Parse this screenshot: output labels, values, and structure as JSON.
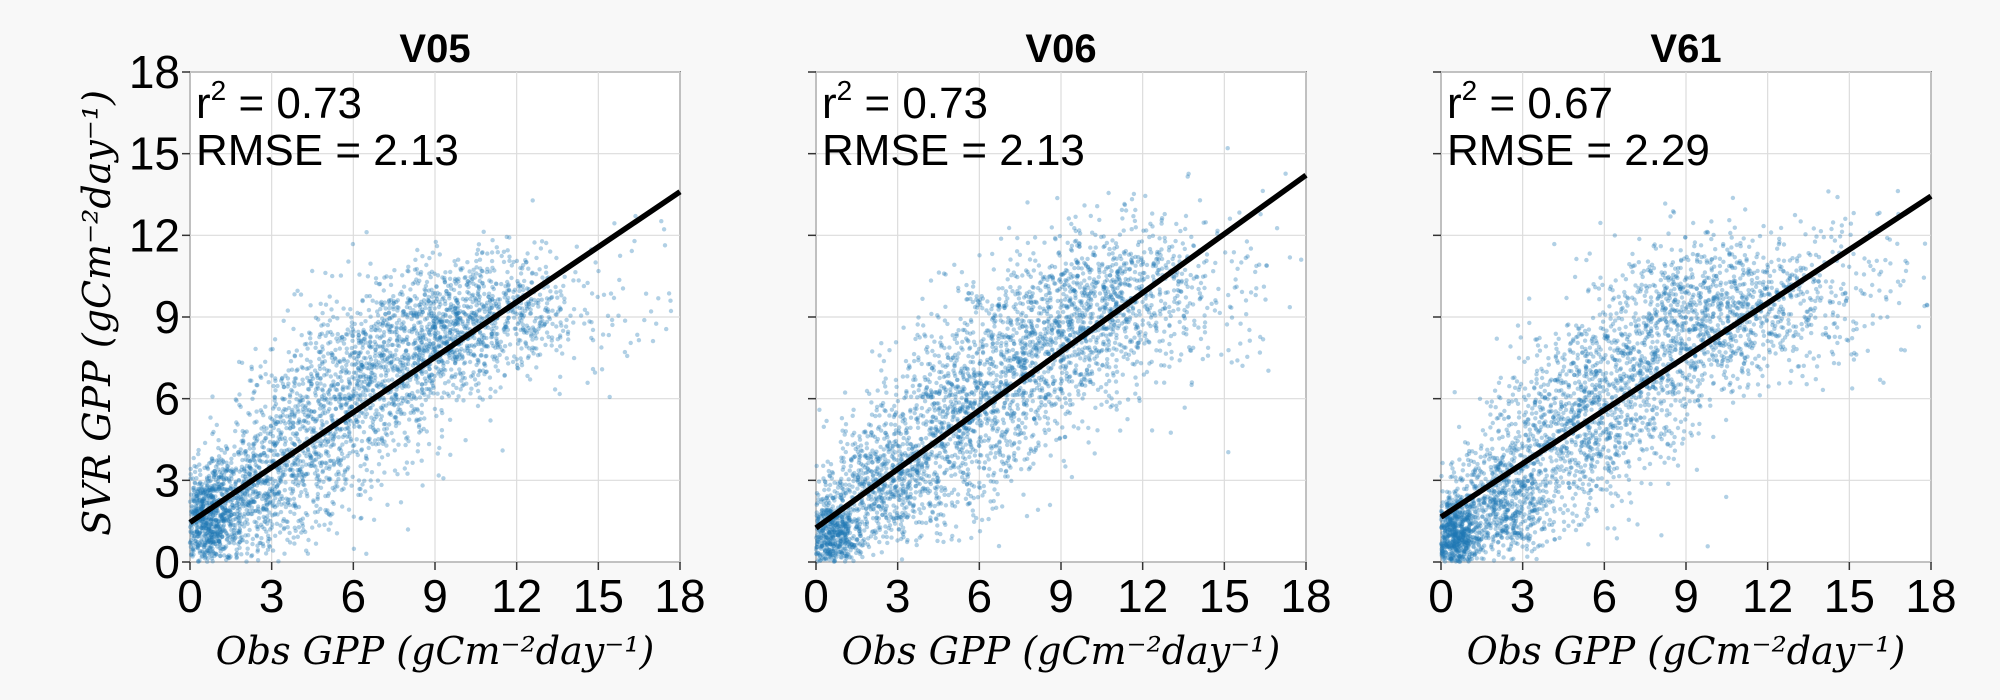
{
  "figure": {
    "ylabel": "SVR GPP (gCm⁻²day⁻¹)",
    "xlabel": "Obs GPP (gCm⁻²day⁻¹)"
  },
  "style": {
    "point_color": "#1f77b4",
    "line_color": "#000000"
  },
  "chart_data": [
    {
      "type": "scatter",
      "title": "V05",
      "xlabel": "Obs GPP (gCm⁻²day⁻¹)",
      "ylabel": "SVR GPP (gCm⁻²day⁻¹)",
      "xlim": [
        0,
        18
      ],
      "ylim": [
        0,
        18
      ],
      "xticks": [
        "0",
        "3",
        "6",
        "9",
        "12",
        "15",
        "18"
      ],
      "yticks": [
        "0",
        "3",
        "6",
        "9",
        "12",
        "15",
        "18"
      ],
      "grid": true,
      "annotations": {
        "r2_label": "r",
        "r2_sup": "2",
        "r2_value": " = 0.73",
        "rmse": "RMSE = 2.13"
      },
      "fit_line": {
        "intercept": 1.45,
        "slope": 0.675
      },
      "clusters": [
        {
          "x": 0.6,
          "y": 1.5,
          "sx": 0.55,
          "sy": 0.9,
          "n": 700
        },
        {
          "x": 2.2,
          "y": 2.5,
          "sx": 1.0,
          "sy": 1.2,
          "n": 650
        },
        {
          "x": 4.5,
          "y": 4.6,
          "sx": 1.4,
          "sy": 1.6,
          "n": 700
        },
        {
          "x": 7.0,
          "y": 7.0,
          "sx": 1.5,
          "sy": 1.5,
          "n": 750
        },
        {
          "x": 9.5,
          "y": 8.6,
          "sx": 1.5,
          "sy": 1.2,
          "n": 750
        },
        {
          "x": 12.0,
          "y": 9.2,
          "sx": 1.6,
          "sy": 1.0,
          "n": 350
        },
        {
          "x": 15.0,
          "y": 9.0,
          "sx": 1.6,
          "sy": 1.6,
          "n": 60
        }
      ]
    },
    {
      "type": "scatter",
      "title": "V06",
      "xlabel": "Obs GPP (gCm⁻²day⁻¹)",
      "ylabel": "",
      "xlim": [
        0,
        18
      ],
      "ylim": [
        0,
        18
      ],
      "xticks": [
        "0",
        "3",
        "6",
        "9",
        "12",
        "15",
        "18"
      ],
      "yticks": [],
      "grid": true,
      "annotations": {
        "r2_label": "r",
        "r2_sup": "2",
        "r2_value": " = 0.73",
        "rmse": "RMSE = 2.13"
      },
      "fit_line": {
        "intercept": 1.25,
        "slope": 0.72
      },
      "clusters": [
        {
          "x": 0.6,
          "y": 1.0,
          "sx": 0.55,
          "sy": 0.8,
          "n": 650
        },
        {
          "x": 2.5,
          "y": 2.8,
          "sx": 1.1,
          "sy": 1.2,
          "n": 650
        },
        {
          "x": 5.0,
          "y": 5.2,
          "sx": 1.4,
          "sy": 1.6,
          "n": 750
        },
        {
          "x": 7.5,
          "y": 7.4,
          "sx": 1.5,
          "sy": 1.7,
          "n": 750
        },
        {
          "x": 10.0,
          "y": 9.3,
          "sx": 1.5,
          "sy": 1.5,
          "n": 700
        },
        {
          "x": 12.5,
          "y": 10.0,
          "sx": 1.6,
          "sy": 1.6,
          "n": 300
        },
        {
          "x": 15.0,
          "y": 10.5,
          "sx": 1.6,
          "sy": 2.0,
          "n": 60
        }
      ]
    },
    {
      "type": "scatter",
      "title": "V61",
      "xlabel": "Obs GPP (gCm⁻²day⁻¹)",
      "ylabel": "",
      "xlim": [
        0,
        18
      ],
      "ylim": [
        0,
        18
      ],
      "xticks": [
        "0",
        "3",
        "6",
        "9",
        "12",
        "15",
        "18"
      ],
      "yticks": [],
      "grid": true,
      "annotations": {
        "r2_label": "r",
        "r2_sup": "2",
        "r2_value": " = 0.67",
        "rmse": "RMSE = 2.29"
      },
      "fit_line": {
        "intercept": 1.65,
        "slope": 0.655
      },
      "clusters": [
        {
          "x": 0.5,
          "y": 0.9,
          "sx": 0.5,
          "sy": 0.8,
          "n": 800
        },
        {
          "x": 2.2,
          "y": 2.2,
          "sx": 1.0,
          "sy": 1.1,
          "n": 650
        },
        {
          "x": 4.5,
          "y": 4.6,
          "sx": 1.4,
          "sy": 1.6,
          "n": 700
        },
        {
          "x": 7.0,
          "y": 6.9,
          "sx": 1.6,
          "sy": 1.7,
          "n": 700
        },
        {
          "x": 9.5,
          "y": 9.2,
          "sx": 1.6,
          "sy": 1.4,
          "n": 700
        },
        {
          "x": 12.5,
          "y": 9.5,
          "sx": 1.6,
          "sy": 1.4,
          "n": 350
        },
        {
          "x": 15.5,
          "y": 10.5,
          "sx": 1.5,
          "sy": 1.8,
          "n": 80
        }
      ]
    }
  ]
}
